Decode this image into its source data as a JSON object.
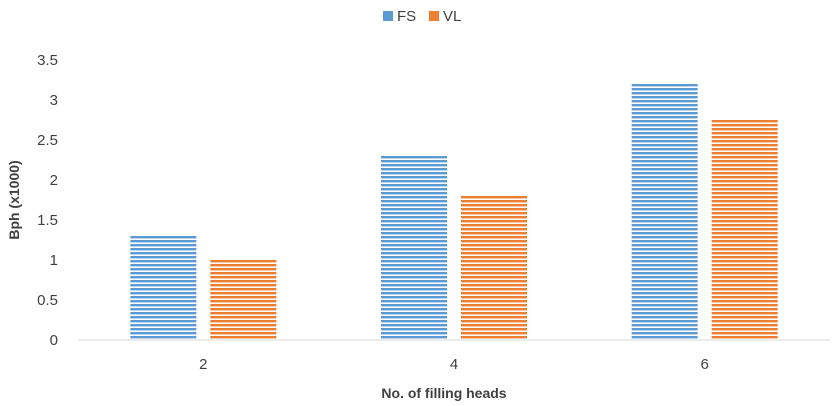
{
  "chart_data": {
    "type": "bar",
    "title": "",
    "xlabel": "No. of filling heads",
    "ylabel": "Bph (x1000)",
    "categories": [
      "2",
      "4",
      "6"
    ],
    "series": [
      {
        "name": "FS",
        "values": [
          1.3,
          2.3,
          3.2
        ],
        "color": "#5B9BD5"
      },
      {
        "name": "VL",
        "values": [
          1.0,
          1.8,
          2.75
        ],
        "color": "#ED7D31"
      }
    ],
    "ylim": [
      0,
      3.5
    ],
    "yticks": [
      "0",
      "0.5",
      "1",
      "1.5",
      "2",
      "2.5",
      "3",
      "3.5"
    ],
    "grid": false,
    "legend": "top-center",
    "bar_fill": "horizontal-stripes"
  }
}
